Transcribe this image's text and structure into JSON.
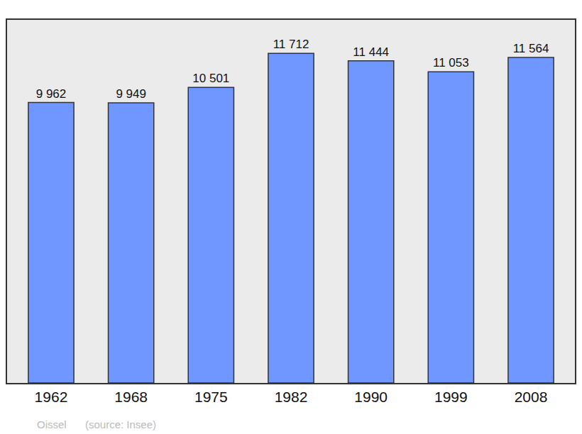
{
  "chart_data": {
    "type": "bar",
    "categories": [
      "1962",
      "1968",
      "1975",
      "1982",
      "1990",
      "1999",
      "2008"
    ],
    "values": [
      9962,
      9949,
      10501,
      11712,
      11444,
      11053,
      11564
    ],
    "value_labels": [
      "9 962",
      "9 949",
      "10 501",
      "11 712",
      "11 444",
      "11 053",
      "11 564"
    ],
    "data_labels": true,
    "color": "#7097ff",
    "ylim": [
      0,
      12900
    ],
    "grid": false,
    "tick_labels": "x",
    "annotations": [
      "Oissel",
      "(source: Insee)"
    ]
  }
}
